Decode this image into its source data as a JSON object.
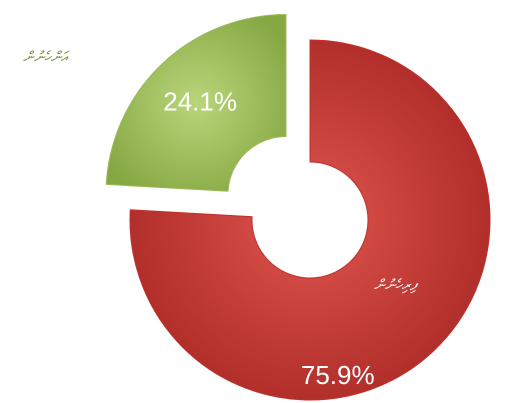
{
  "chart_data": {
    "type": "donut",
    "categories": [
      "ފިރިހެނުން",
      "އަންހެނުން"
    ],
    "values": [
      75.9,
      24.1
    ],
    "value_labels": [
      "75.9%",
      "24.1%"
    ],
    "colors": [
      "#c0312c",
      "#9bbb59"
    ],
    "label_colors": [
      "#ffffff",
      "#76923c"
    ],
    "exploded": [
      false,
      true
    ]
  }
}
